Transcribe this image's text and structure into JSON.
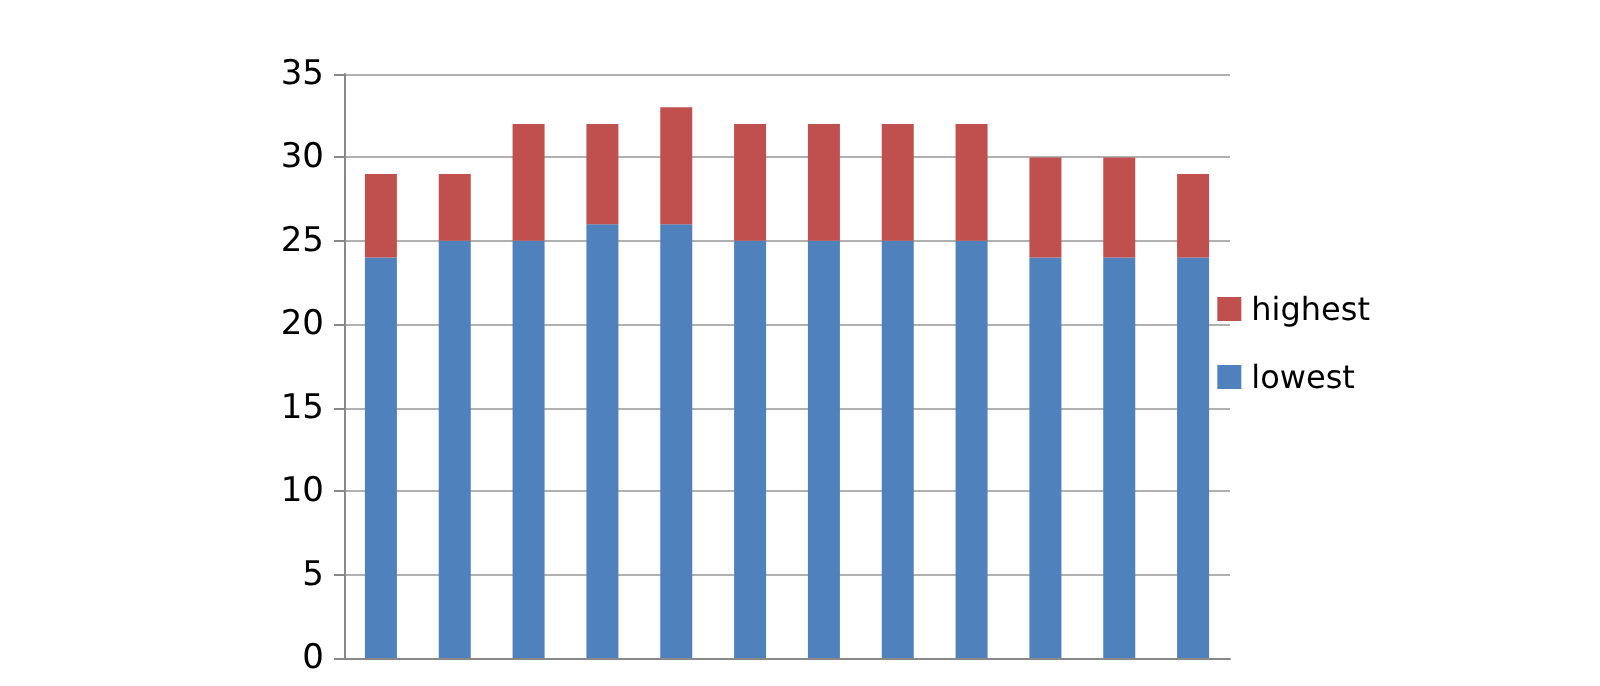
{
  "chart_data": {
    "type": "bar",
    "stacked": true,
    "categories": [
      null,
      null,
      null,
      null,
      null,
      null,
      null,
      null,
      null,
      null,
      null,
      null
    ],
    "series": [
      {
        "name": "lowest",
        "color": "#4f81bd",
        "values": [
          24,
          25,
          25,
          26,
          26,
          25,
          25,
          25,
          25,
          24,
          24,
          24
        ]
      },
      {
        "name": "highest",
        "color": "#c0504d",
        "values": [
          5,
          4,
          7,
          6,
          7,
          7,
          7,
          7,
          7,
          6,
          6,
          5
        ]
      }
    ],
    "ylim": [
      0,
      35
    ],
    "yticks": [
      0,
      5,
      10,
      15,
      20,
      25,
      30,
      35
    ],
    "grid": "y",
    "legend": "right",
    "tick_labels": "y"
  }
}
